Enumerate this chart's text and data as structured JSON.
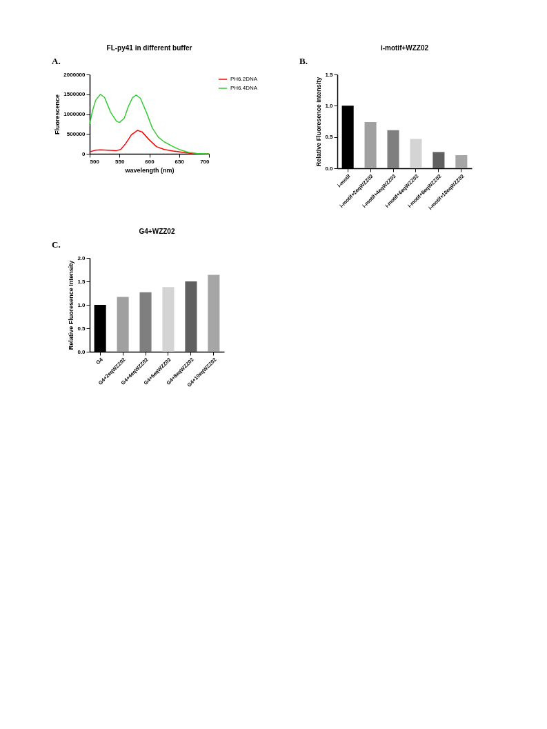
{
  "chart_data": [
    {
      "type": "line",
      "title": "FL-py41 in different  buffer",
      "xlabel": "wavelength (nm)",
      "ylabel": "Fluorescence",
      "annotations": [
        "A."
      ],
      "legend": "right",
      "grid": false,
      "marker": "none",
      "line_style": "solid",
      "xlim": [
        500,
        700
      ],
      "xticks": [
        500,
        550,
        600,
        650,
        700
      ],
      "ylim": [
        0,
        2000000
      ],
      "yticks": [
        0,
        500000,
        1000000,
        1500000,
        2000000
      ],
      "series": [
        {
          "name": "PH6.2DNA",
          "color": "#ff0000",
          "x": [
            500,
            510,
            518,
            530,
            545,
            552,
            560,
            570,
            580,
            588,
            600,
            612,
            625,
            640,
            655,
            670,
            700
          ],
          "values": [
            50000,
            90000,
            100000,
            90000,
            80000,
            110000,
            250000,
            480000,
            590000,
            550000,
            350000,
            180000,
            110000,
            70000,
            40000,
            10000,
            0
          ]
        },
        {
          "name": "PH6.4DNA",
          "color": "#33cc33",
          "x": [
            500,
            505,
            510,
            518,
            525,
            535,
            545,
            550,
            558,
            565,
            572,
            578,
            585,
            595,
            605,
            615,
            625,
            640,
            650,
            665,
            680,
            700
          ],
          "values": [
            750000,
            1100000,
            1350000,
            1500000,
            1420000,
            1050000,
            820000,
            790000,
            900000,
            1200000,
            1420000,
            1480000,
            1400000,
            1050000,
            650000,
            420000,
            300000,
            180000,
            110000,
            40000,
            10000,
            0
          ]
        }
      ]
    },
    {
      "type": "bar",
      "title": "i-motif+WZZ02",
      "ylabel": "Relative Fluoresence Intensity",
      "annotations": [
        "B."
      ],
      "grid": false,
      "categories": [
        "i-motif",
        "i-motif+2eqWZZ02",
        "i-motif+4eqWZZ02",
        "i-motif+6eqWZZ02",
        "i-motif+8eqWZZ02",
        "i-motif+10eqWZZ02"
      ],
      "values": [
        1.0,
        0.74,
        0.61,
        0.47,
        0.26,
        0.21
      ],
      "colors": [
        "#000000",
        "#a0a0a0",
        "#7f7f7f",
        "#d4d4d4",
        "#606060",
        "#a6a6a6"
      ],
      "ylim": [
        0,
        1.5
      ],
      "yticks": [
        {
          "value": 0,
          "label": "0.0"
        },
        0.5,
        {
          "value": 1,
          "label": "1.0"
        },
        1.5
      ]
    },
    {
      "type": "bar",
      "title": "G4+WZZ02",
      "ylabel": "Relative Fluoresence Intensity",
      "annotations": [
        "C."
      ],
      "grid": false,
      "categories": [
        "G4",
        "G4+2eqWZZ02",
        "G4+4eqWZZ02",
        "G4+6eqWZZ02",
        "G4+8eqWZZ02",
        "G4+10eqWZZ02"
      ],
      "values": [
        1.0,
        1.17,
        1.27,
        1.38,
        1.5,
        1.64
      ],
      "colors": [
        "#000000",
        "#a0a0a0",
        "#7f7f7f",
        "#d4d4d4",
        "#606060",
        "#a6a6a6"
      ],
      "ylim": [
        0,
        2.0
      ],
      "yticks": [
        {
          "value": 0,
          "label": "0.0"
        },
        0.5,
        {
          "value": 1,
          "label": "1.0"
        },
        1.5,
        {
          "value": 2,
          "label": "2.0"
        }
      ]
    }
  ]
}
